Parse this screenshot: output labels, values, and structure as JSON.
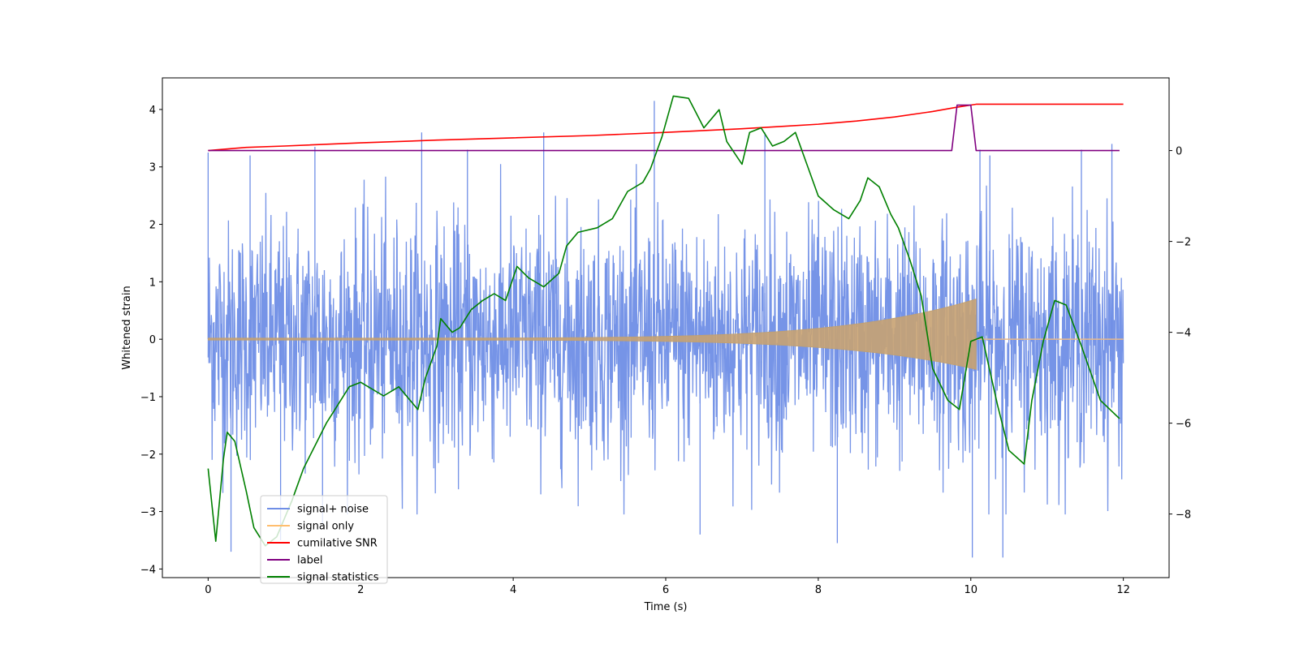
{
  "chart_data": {
    "type": "line",
    "title": "",
    "xlabel": "Time (s)",
    "ylabel": "Whitened strain",
    "y2label": "",
    "xlim": [
      -0.6,
      12.6
    ],
    "ylim": [
      -4.15,
      4.55
    ],
    "y2lim": [
      -9.4,
      1.6
    ],
    "x_ticks": [
      0,
      2,
      4,
      6,
      8,
      10,
      12
    ],
    "y_ticks": [
      -4,
      -3,
      -2,
      -1,
      0,
      1,
      2,
      3,
      4
    ],
    "y2_ticks": [
      -8,
      -6,
      -4,
      -2,
      0
    ],
    "grid": false,
    "legend_position": "lower-left",
    "series": [
      {
        "name": "signal+ noise",
        "axis": "left",
        "color": "#6f8ee6",
        "description_points": {
          "x": [
            0,
            0.3,
            0.55,
            0.95,
            1.4,
            1.5,
            2.8,
            3.4,
            4.4,
            5.85,
            6.45,
            7.3,
            8.25,
            10.02,
            10.12,
            10.25,
            10.42,
            11.45,
            11.85
          ],
          "y": [
            3.25,
            -3.7,
            3.2,
            -3.5,
            3.35,
            -3.2,
            3.6,
            3.3,
            3.6,
            4.15,
            -3.4,
            3.6,
            -3.55,
            -3.8,
            3.3,
            3.2,
            -3.8,
            3.3,
            3.4
          ]
        },
        "envelope_low": 1.2,
        "envelope_high": 3.2
      },
      {
        "name": "signal only",
        "axis": "left",
        "color": "#ffbe6e",
        "chirp_start": 0,
        "chirp_end": 10.07,
        "amplitude_start": 0.02,
        "amplitude_end": 0.7,
        "x_after": [
          10.07,
          12
        ],
        "y_after": [
          0,
          0
        ]
      },
      {
        "name": "cumilative SNR",
        "axis": "right",
        "color": "#ff0000",
        "x": [
          0,
          0.5,
          1,
          2,
          3,
          4,
          5,
          6,
          7,
          7.5,
          8,
          8.5,
          9,
          9.5,
          9.8,
          10.07,
          10.08,
          12
        ],
        "values": [
          0,
          0.07,
          0.1,
          0.17,
          0.23,
          0.28,
          0.33,
          0.4,
          0.48,
          0.53,
          0.58,
          0.65,
          0.74,
          0.86,
          0.95,
          1.02,
          1.02,
          1.02
        ]
      },
      {
        "name": "label",
        "axis": "right",
        "color": "#800080",
        "x": [
          0,
          9.75,
          9.82,
          10.0,
          10.07,
          11.95
        ],
        "values": [
          0,
          0,
          1,
          1,
          0,
          0
        ]
      },
      {
        "name": "signal statistics",
        "axis": "right",
        "color": "#008000",
        "x": [
          0,
          0.1,
          0.2,
          0.25,
          0.35,
          0.5,
          0.6,
          0.75,
          0.9,
          1.1,
          1.25,
          1.4,
          1.55,
          1.7,
          1.85,
          2.0,
          2.1,
          2.3,
          2.5,
          2.6,
          2.75,
          2.85,
          3.0,
          3.05,
          3.2,
          3.3,
          3.45,
          3.6,
          3.75,
          3.9,
          4.05,
          4.2,
          4.4,
          4.6,
          4.7,
          4.85,
          5.1,
          5.3,
          5.5,
          5.7,
          5.8,
          5.95,
          6.1,
          6.3,
          6.5,
          6.7,
          6.8,
          7.0,
          7.1,
          7.25,
          7.4,
          7.55,
          7.7,
          7.85,
          8.0,
          8.2,
          8.4,
          8.55,
          8.65,
          8.8,
          8.95,
          9.05,
          9.2,
          9.35,
          9.5,
          9.7,
          9.85,
          10.0,
          10.15,
          10.35,
          10.5,
          10.7,
          10.8,
          10.95,
          11.1,
          11.25,
          11.45,
          11.7,
          11.95
        ],
        "values": [
          -7.0,
          -8.6,
          -6.8,
          -6.2,
          -6.4,
          -7.5,
          -8.3,
          -8.7,
          -8.5,
          -7.7,
          -7.0,
          -6.5,
          -6.0,
          -5.6,
          -5.2,
          -5.1,
          -5.2,
          -5.4,
          -5.2,
          -5.4,
          -5.7,
          -5.0,
          -4.3,
          -3.7,
          -4.0,
          -3.9,
          -3.5,
          -3.3,
          -3.15,
          -3.3,
          -2.55,
          -2.8,
          -3.0,
          -2.7,
          -2.1,
          -1.8,
          -1.7,
          -1.5,
          -0.9,
          -0.7,
          -0.4,
          0.3,
          1.2,
          1.15,
          0.5,
          0.9,
          0.2,
          -0.3,
          0.4,
          0.5,
          0.1,
          0.2,
          0.4,
          -0.3,
          -1.0,
          -1.3,
          -1.5,
          -1.1,
          -0.6,
          -0.8,
          -1.4,
          -1.7,
          -2.4,
          -3.2,
          -4.8,
          -5.5,
          -5.7,
          -4.2,
          -4.1,
          -5.6,
          -6.6,
          -6.9,
          -5.5,
          -4.2,
          -3.3,
          -3.4,
          -4.3,
          -5.5,
          -5.9
        ]
      }
    ]
  },
  "legend": {
    "items": [
      {
        "label": "signal+ noise",
        "color": "#6f8ee6"
      },
      {
        "label": "signal only",
        "color": "#ffbe6e"
      },
      {
        "label": "cumilative SNR",
        "color": "#ff0000"
      },
      {
        "label": "label",
        "color": "#800080"
      },
      {
        "label": "signal statistics",
        "color": "#008000"
      }
    ]
  }
}
